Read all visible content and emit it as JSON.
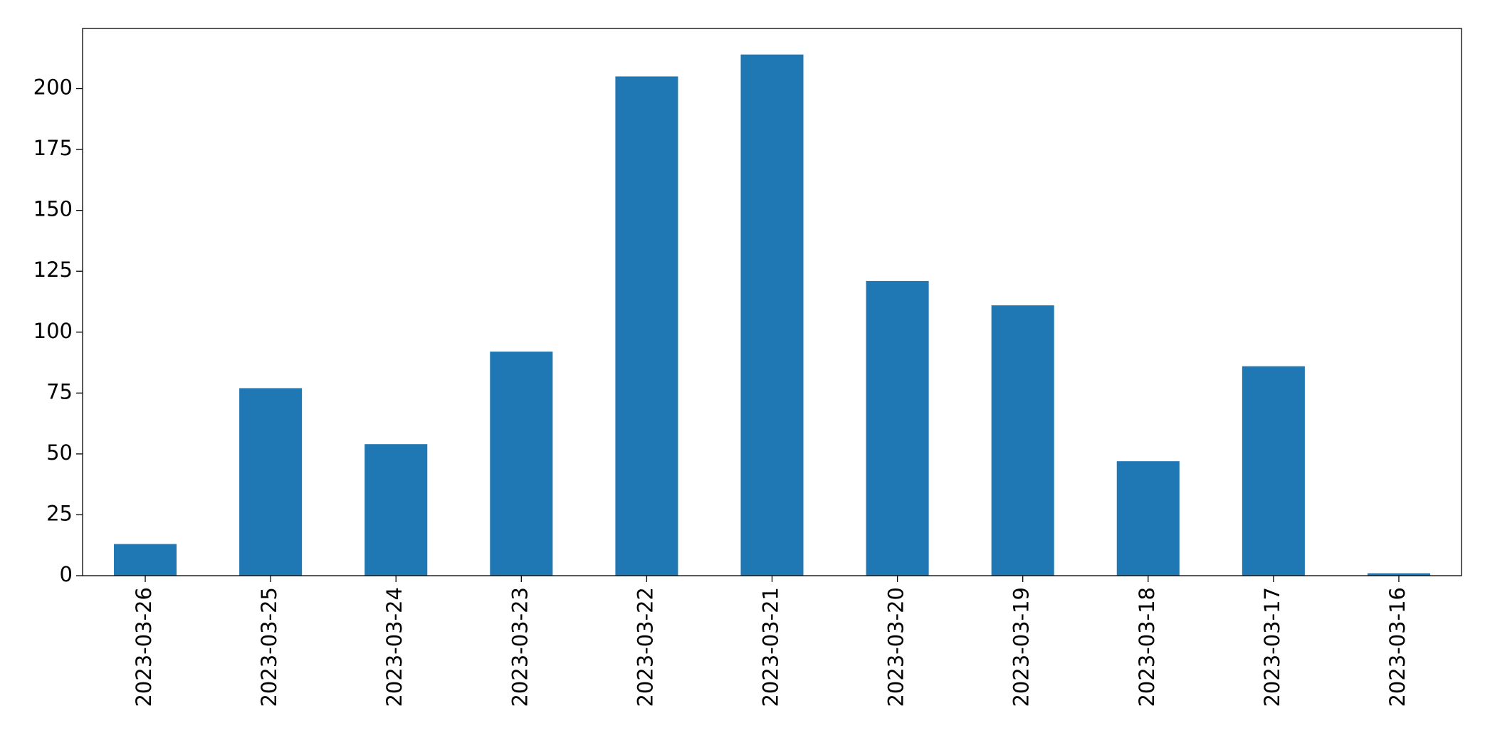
{
  "chart_data": {
    "type": "bar",
    "categories": [
      "2023-03-26",
      "2023-03-25",
      "2023-03-24",
      "2023-03-23",
      "2023-03-22",
      "2023-03-21",
      "2023-03-20",
      "2023-03-19",
      "2023-03-18",
      "2023-03-17",
      "2023-03-16"
    ],
    "values": [
      13,
      77,
      54,
      92,
      205,
      214,
      121,
      111,
      47,
      86,
      1
    ],
    "color": "#1f77b4",
    "ylim": [
      0,
      224.7
    ],
    "yticks": [
      0,
      25,
      50,
      75,
      100,
      125,
      150,
      175,
      200
    ],
    "grid": false
  }
}
